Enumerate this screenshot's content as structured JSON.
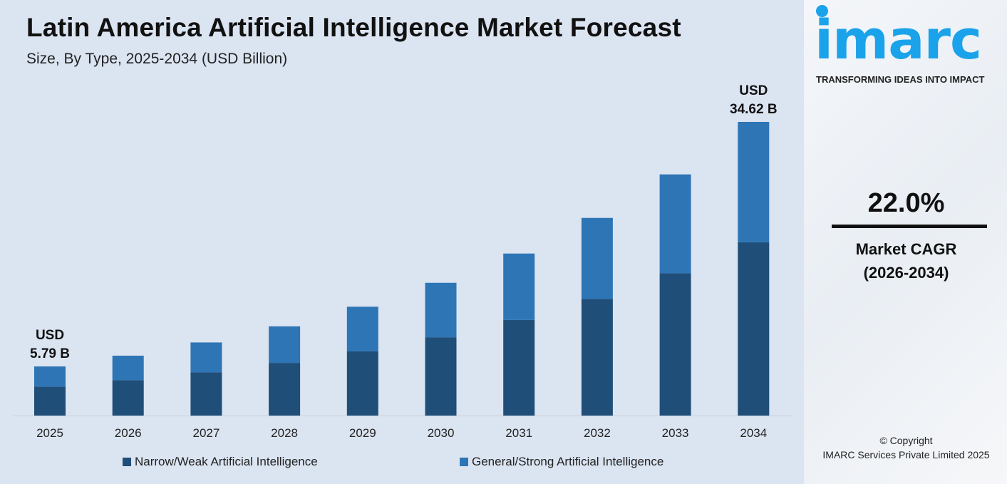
{
  "header": {
    "title": "Latin America Artificial Intelligence Market Forecast",
    "subtitle": "Size, By Type, 2025-2034 (USD Billion)"
  },
  "chart_data": {
    "type": "bar",
    "stacked": true,
    "title": "Latin America Artificial Intelligence Market Forecast",
    "subtitle": "Size, By Type, 2025-2034 (USD Billion)",
    "categories": [
      "2025",
      "2026",
      "2027",
      "2028",
      "2029",
      "2030",
      "2031",
      "2032",
      "2033",
      "2034"
    ],
    "series": [
      {
        "name": "Narrow/Weak Artificial Intelligence",
        "color": "#1f4e79",
        "values": [
          3.42,
          4.17,
          5.09,
          6.21,
          7.57,
          9.23,
          11.27,
          13.75,
          16.77,
          20.43
        ]
      },
      {
        "name": "General/Strong Artificial Intelligence",
        "color": "#2e75b6",
        "values": [
          2.37,
          2.89,
          3.53,
          4.31,
          5.26,
          6.42,
          7.83,
          9.55,
          11.66,
          14.19
        ]
      }
    ],
    "annotations": [
      {
        "category": "2025",
        "line1": "USD",
        "line2": "5.79 B"
      },
      {
        "category": "2034",
        "line1": "USD",
        "line2": "34.62 B"
      }
    ],
    "ylim": [
      0,
      34.62
    ],
    "grid": false,
    "legend": "bottom"
  },
  "sidebar": {
    "logo": "imarc",
    "tagline": "TRANSFORMING IDEAS INTO IMPACT",
    "cagr_value": "22.0%",
    "cagr_label": "Market CAGR",
    "cagr_period": "(2026-2034)",
    "copyright": "© Copyright",
    "company": "IMARC Services Private Limited 2025",
    "brand_color": "#1aa3ea"
  }
}
